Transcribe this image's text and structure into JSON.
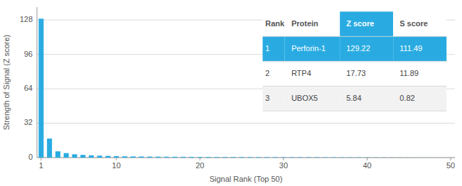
{
  "chart_data": {
    "type": "bar",
    "x": [
      1,
      2,
      3,
      4,
      5,
      6,
      7,
      8,
      9,
      10,
      11,
      12,
      13,
      14,
      15,
      16,
      17,
      18,
      19,
      20,
      21,
      22,
      23,
      24,
      25,
      26,
      27,
      28,
      29,
      30,
      31,
      32,
      33,
      34,
      35,
      36,
      37,
      38,
      39,
      40,
      41,
      42,
      43,
      44,
      45,
      46,
      47,
      48,
      49,
      50
    ],
    "values": [
      129.22,
      17.73,
      5.84,
      4.2,
      3.1,
      2.5,
      2.1,
      1.8,
      1.6,
      1.4,
      1.2,
      1.1,
      1.0,
      0.95,
      0.9,
      0.85,
      0.8,
      0.75,
      0.7,
      0.65,
      0.6,
      0.58,
      0.55,
      0.52,
      0.5,
      0.48,
      0.46,
      0.44,
      0.42,
      0.4,
      0.38,
      0.36,
      0.34,
      0.32,
      0.3,
      0.28,
      0.26,
      0.24,
      0.22,
      0.2,
      0.18,
      0.16,
      0.14,
      0.12,
      0.1,
      0.09,
      0.08,
      0.07,
      0.06,
      0.05
    ],
    "color": "#29ABE2",
    "x_label": "Signal Rank (Top 50)",
    "y_label": "Strength of Signal (Z score)",
    "xlim": [
      0.5,
      50.5
    ],
    "xticks": [
      1,
      10,
      20,
      30,
      40,
      50
    ],
    "ylim": [
      0,
      140
    ],
    "yticks": [
      0,
      32,
      64,
      96,
      128
    ],
    "grid": true,
    "table": {
      "headers": [
        "Rank",
        "Protein",
        "Z score",
        "S score"
      ],
      "rows": [
        [
          "1",
          "Perforin-1",
          "129.22",
          "111.49"
        ],
        [
          "2",
          "RTP4",
          "17.73",
          "11.89"
        ],
        [
          "3",
          "UBOX5",
          "5.84",
          "0.82"
        ]
      ]
    }
  }
}
